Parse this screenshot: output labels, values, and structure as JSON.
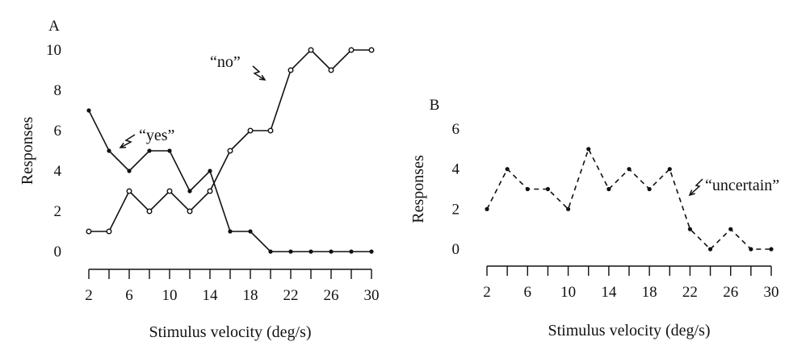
{
  "chart_data": [
    {
      "panel_label": "A",
      "type": "line",
      "xlabel": "Stimulus velocity (deg/s)",
      "ylabel": "Responses",
      "ylim": [
        0,
        10
      ],
      "xlim": [
        2,
        30
      ],
      "x_ticks": [
        2,
        6,
        10,
        14,
        18,
        22,
        26,
        30
      ],
      "y_ticks": [
        0,
        2,
        4,
        6,
        8,
        10
      ],
      "x": [
        2,
        4,
        6,
        8,
        10,
        12,
        14,
        16,
        18,
        20,
        22,
        24,
        26,
        28,
        30
      ],
      "series": [
        {
          "annotation": "“yes”",
          "marker": "filled",
          "values": [
            7,
            5,
            4,
            5,
            5,
            3,
            4,
            1,
            1,
            0,
            0,
            0,
            0,
            0,
            0
          ]
        },
        {
          "annotation": "“no”",
          "marker": "open",
          "values": [
            1,
            1,
            3,
            2,
            3,
            2,
            3,
            5,
            6,
            6,
            9,
            10,
            9,
            10,
            10
          ]
        }
      ]
    },
    {
      "panel_label": "B",
      "type": "line",
      "xlabel": "Stimulus velocity (deg/s)",
      "ylabel": "Responses",
      "ylim": [
        0,
        6
      ],
      "xlim": [
        2,
        30
      ],
      "x_ticks": [
        2,
        6,
        10,
        14,
        18,
        22,
        26,
        30
      ],
      "y_ticks": [
        0,
        2,
        4,
        6
      ],
      "x": [
        2,
        4,
        6,
        8,
        10,
        12,
        14,
        16,
        18,
        20,
        22,
        24,
        26,
        28,
        30
      ],
      "series": [
        {
          "annotation": "“uncertain”",
          "marker": "filled",
          "line_style": "dashed",
          "values": [
            2,
            4,
            3,
            3,
            2,
            5,
            3,
            4,
            3,
            4,
            1,
            0,
            1,
            0,
            0
          ]
        }
      ]
    }
  ]
}
